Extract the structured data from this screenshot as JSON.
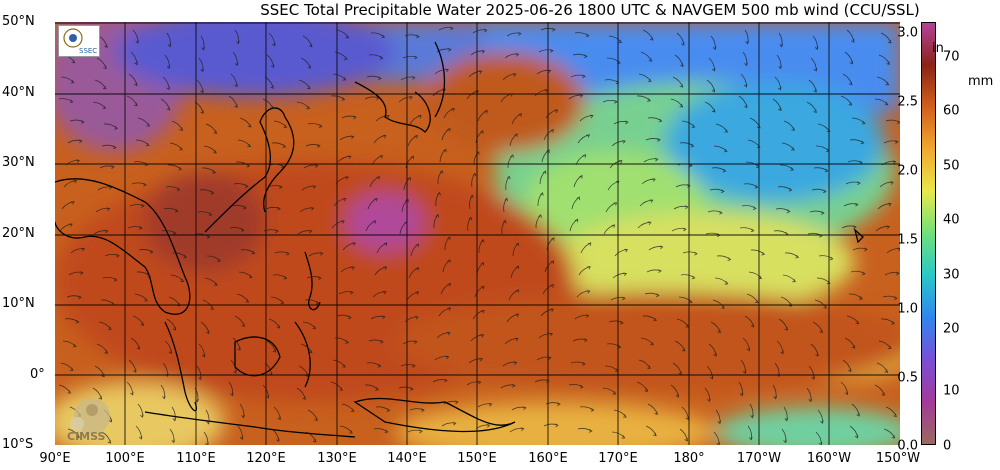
{
  "title": "SSEC Total Precipitable Water  2025-06-26 1800 UTC & NAVGEM 500 mb wind (CCU/SSL)",
  "lat_labels": [
    "50°N",
    "40°N",
    "30°N",
    "20°N",
    "10°N",
    "0°",
    "10°S"
  ],
  "lon_labels": [
    "90°E",
    "100°E",
    "110°E",
    "120°E",
    "130°E",
    "140°E",
    "150°E",
    "160°E",
    "170°E",
    "180°",
    "170°W",
    "160°W",
    "150°W"
  ],
  "colorbar": {
    "inch_unit": "in",
    "mm_unit": "mm",
    "inch_ticks": [
      "3.0",
      "2.5",
      "2.0",
      "1.5",
      "1.0",
      "0.5",
      "0.0"
    ],
    "mm_ticks": [
      "70",
      "60",
      "50",
      "40",
      "30",
      "20",
      "10",
      "0"
    ],
    "colors_bottom_to_top": [
      "#9a6a5e",
      "#a23a9a",
      "#7a4fd6",
      "#2f86ee",
      "#28c8c8",
      "#6fe07a",
      "#e8e84a",
      "#f0a830",
      "#d2601c",
      "#8a2416",
      "#b4429a"
    ]
  },
  "logos": {
    "ssec_label": "SSEC",
    "cimss_label": "CIMSS"
  }
}
